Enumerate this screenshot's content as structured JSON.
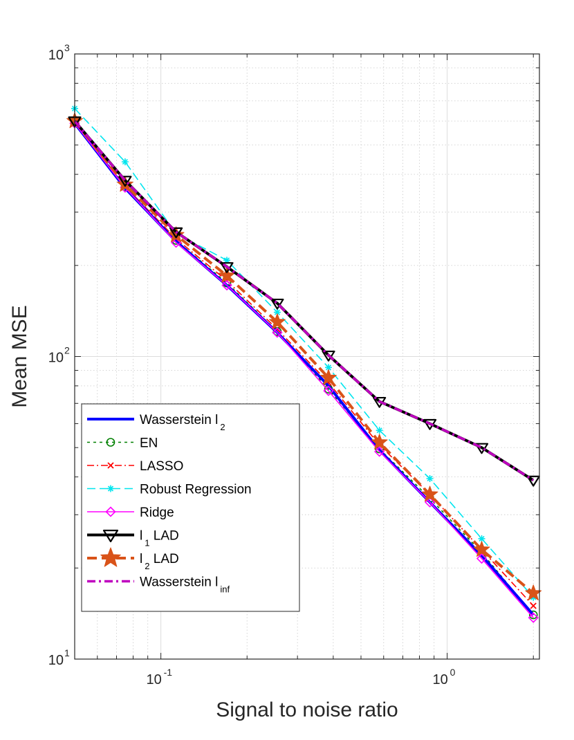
{
  "chart_data": {
    "type": "line",
    "xscale": "log",
    "yscale": "log",
    "xlim": [
      0.05,
      2.1
    ],
    "ylim": [
      10,
      1000
    ],
    "grid": true,
    "minor_grid": true,
    "xlabel": "Signal to noise ratio",
    "ylabel": "Mean MSE",
    "x_ticks": [
      {
        "value": 0.1,
        "base": "10",
        "exp": "-1"
      },
      {
        "value": 1,
        "base": "10",
        "exp": "0"
      }
    ],
    "y_ticks": [
      {
        "value": 10,
        "base": "10",
        "exp": "1"
      },
      {
        "value": 100,
        "base": "10",
        "exp": "2"
      },
      {
        "value": 1000,
        "base": "10",
        "exp": "3"
      }
    ],
    "legend_position": "bottom-left",
    "x": [
      0.05,
      0.075,
      0.113,
      0.17,
      0.255,
      0.385,
      0.58,
      0.87,
      1.32,
      2.0
    ],
    "series": [
      {
        "id": "wl2",
        "name": "Wasserstein l",
        "name_sub": "2",
        "color": "#0000ff",
        "dash": "",
        "width": 4,
        "marker": "none",
        "values": [
          590,
          360,
          240,
          172,
          120,
          80,
          49,
          33,
          22,
          14
        ]
      },
      {
        "id": "en",
        "name": "EN",
        "name_sub": "",
        "color": "#008000",
        "dash": "4,5",
        "width": 1.6,
        "marker": "circle",
        "values": [
          595,
          364,
          242,
          175,
          121,
          78,
          49.5,
          34,
          22.5,
          14
        ]
      },
      {
        "id": "lasso",
        "name": "LASSO",
        "name_sub": "",
        "color": "#ff0000",
        "dash": "10,4,2,4",
        "width": 1.6,
        "marker": "x",
        "values": [
          600,
          365,
          245,
          178,
          123,
          82,
          51,
          35,
          23,
          15
        ]
      },
      {
        "id": "robust",
        "name": "Robust Regression",
        "name_sub": "",
        "color": "#00e5ee",
        "dash": "12,6",
        "width": 1.6,
        "marker": "asterisk",
        "values": [
          660,
          440,
          255,
          208,
          140,
          92,
          57,
          39.5,
          25,
          16
        ]
      },
      {
        "id": "ridge",
        "name": "Ridge",
        "name_sub": "",
        "color": "#ff00ff",
        "dash": "",
        "width": 1.6,
        "marker": "diamond",
        "values": [
          590,
          362,
          238,
          172,
          120,
          77,
          48.5,
          33,
          21.5,
          13.7
        ]
      },
      {
        "id": "l1lad",
        "name": "l",
        "name_sub": "1",
        "name_suffix": " LAD",
        "color": "#000000",
        "dash": "",
        "width": 4,
        "marker": "triangle-down",
        "values": [
          600,
          382,
          258,
          198,
          150,
          101,
          71,
          60,
          50,
          39
        ]
      },
      {
        "id": "l2lad",
        "name": "l",
        "name_sub": "2",
        "name_suffix": " LAD",
        "color": "#d95319",
        "dash": "14,7",
        "width": 4,
        "marker": "star",
        "values": [
          600,
          370,
          252,
          185,
          130,
          85,
          52,
          35,
          23,
          16.5
        ]
      },
      {
        "id": "winf",
        "name": "Wasserstein l",
        "name_sub": "inf",
        "color": "#bf00bf",
        "dash": "12,5,3,5",
        "width": 3.5,
        "marker": "none",
        "values": [
          600,
          382,
          258,
          198,
          150,
          101,
          71,
          60,
          50,
          39
        ]
      }
    ]
  }
}
